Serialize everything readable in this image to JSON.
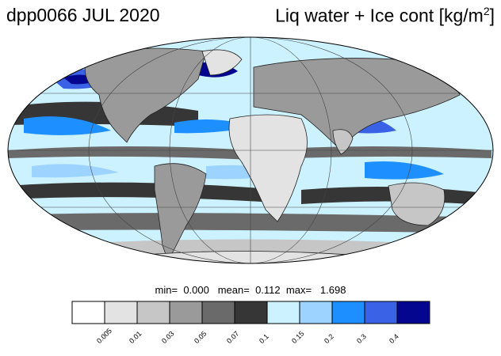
{
  "header": {
    "left_title": "dpp0066 JUL 2020",
    "right_title_main": "Liq water + Ice cont [kg/m",
    "right_title_sup": "2",
    "right_title_end": "]"
  },
  "stats": {
    "min_label": "min=",
    "min_value": "0.000",
    "mean_label": "mean=",
    "mean_value": "0.112",
    "max_label": "max=",
    "max_value": "1.698"
  },
  "colorbar": {
    "colors": [
      "#ffffff",
      "#e3e3e3",
      "#c6c6c6",
      "#9a9a9a",
      "#6a6a6a",
      "#363636",
      "#ccf2ff",
      "#9dd4ff",
      "#1e8fff",
      "#3a62e6",
      "#04068f"
    ],
    "ticks": [
      "0.005",
      "0.01",
      "0.03",
      "0.05",
      "0.07",
      "0.1",
      "0.15",
      "0.2",
      "0.3",
      "0.4"
    ]
  },
  "map": {
    "projection": "Mollweide",
    "gridlines": true,
    "ocean_background": "#ccf2ff",
    "land_color": "#9a9a9a"
  }
}
